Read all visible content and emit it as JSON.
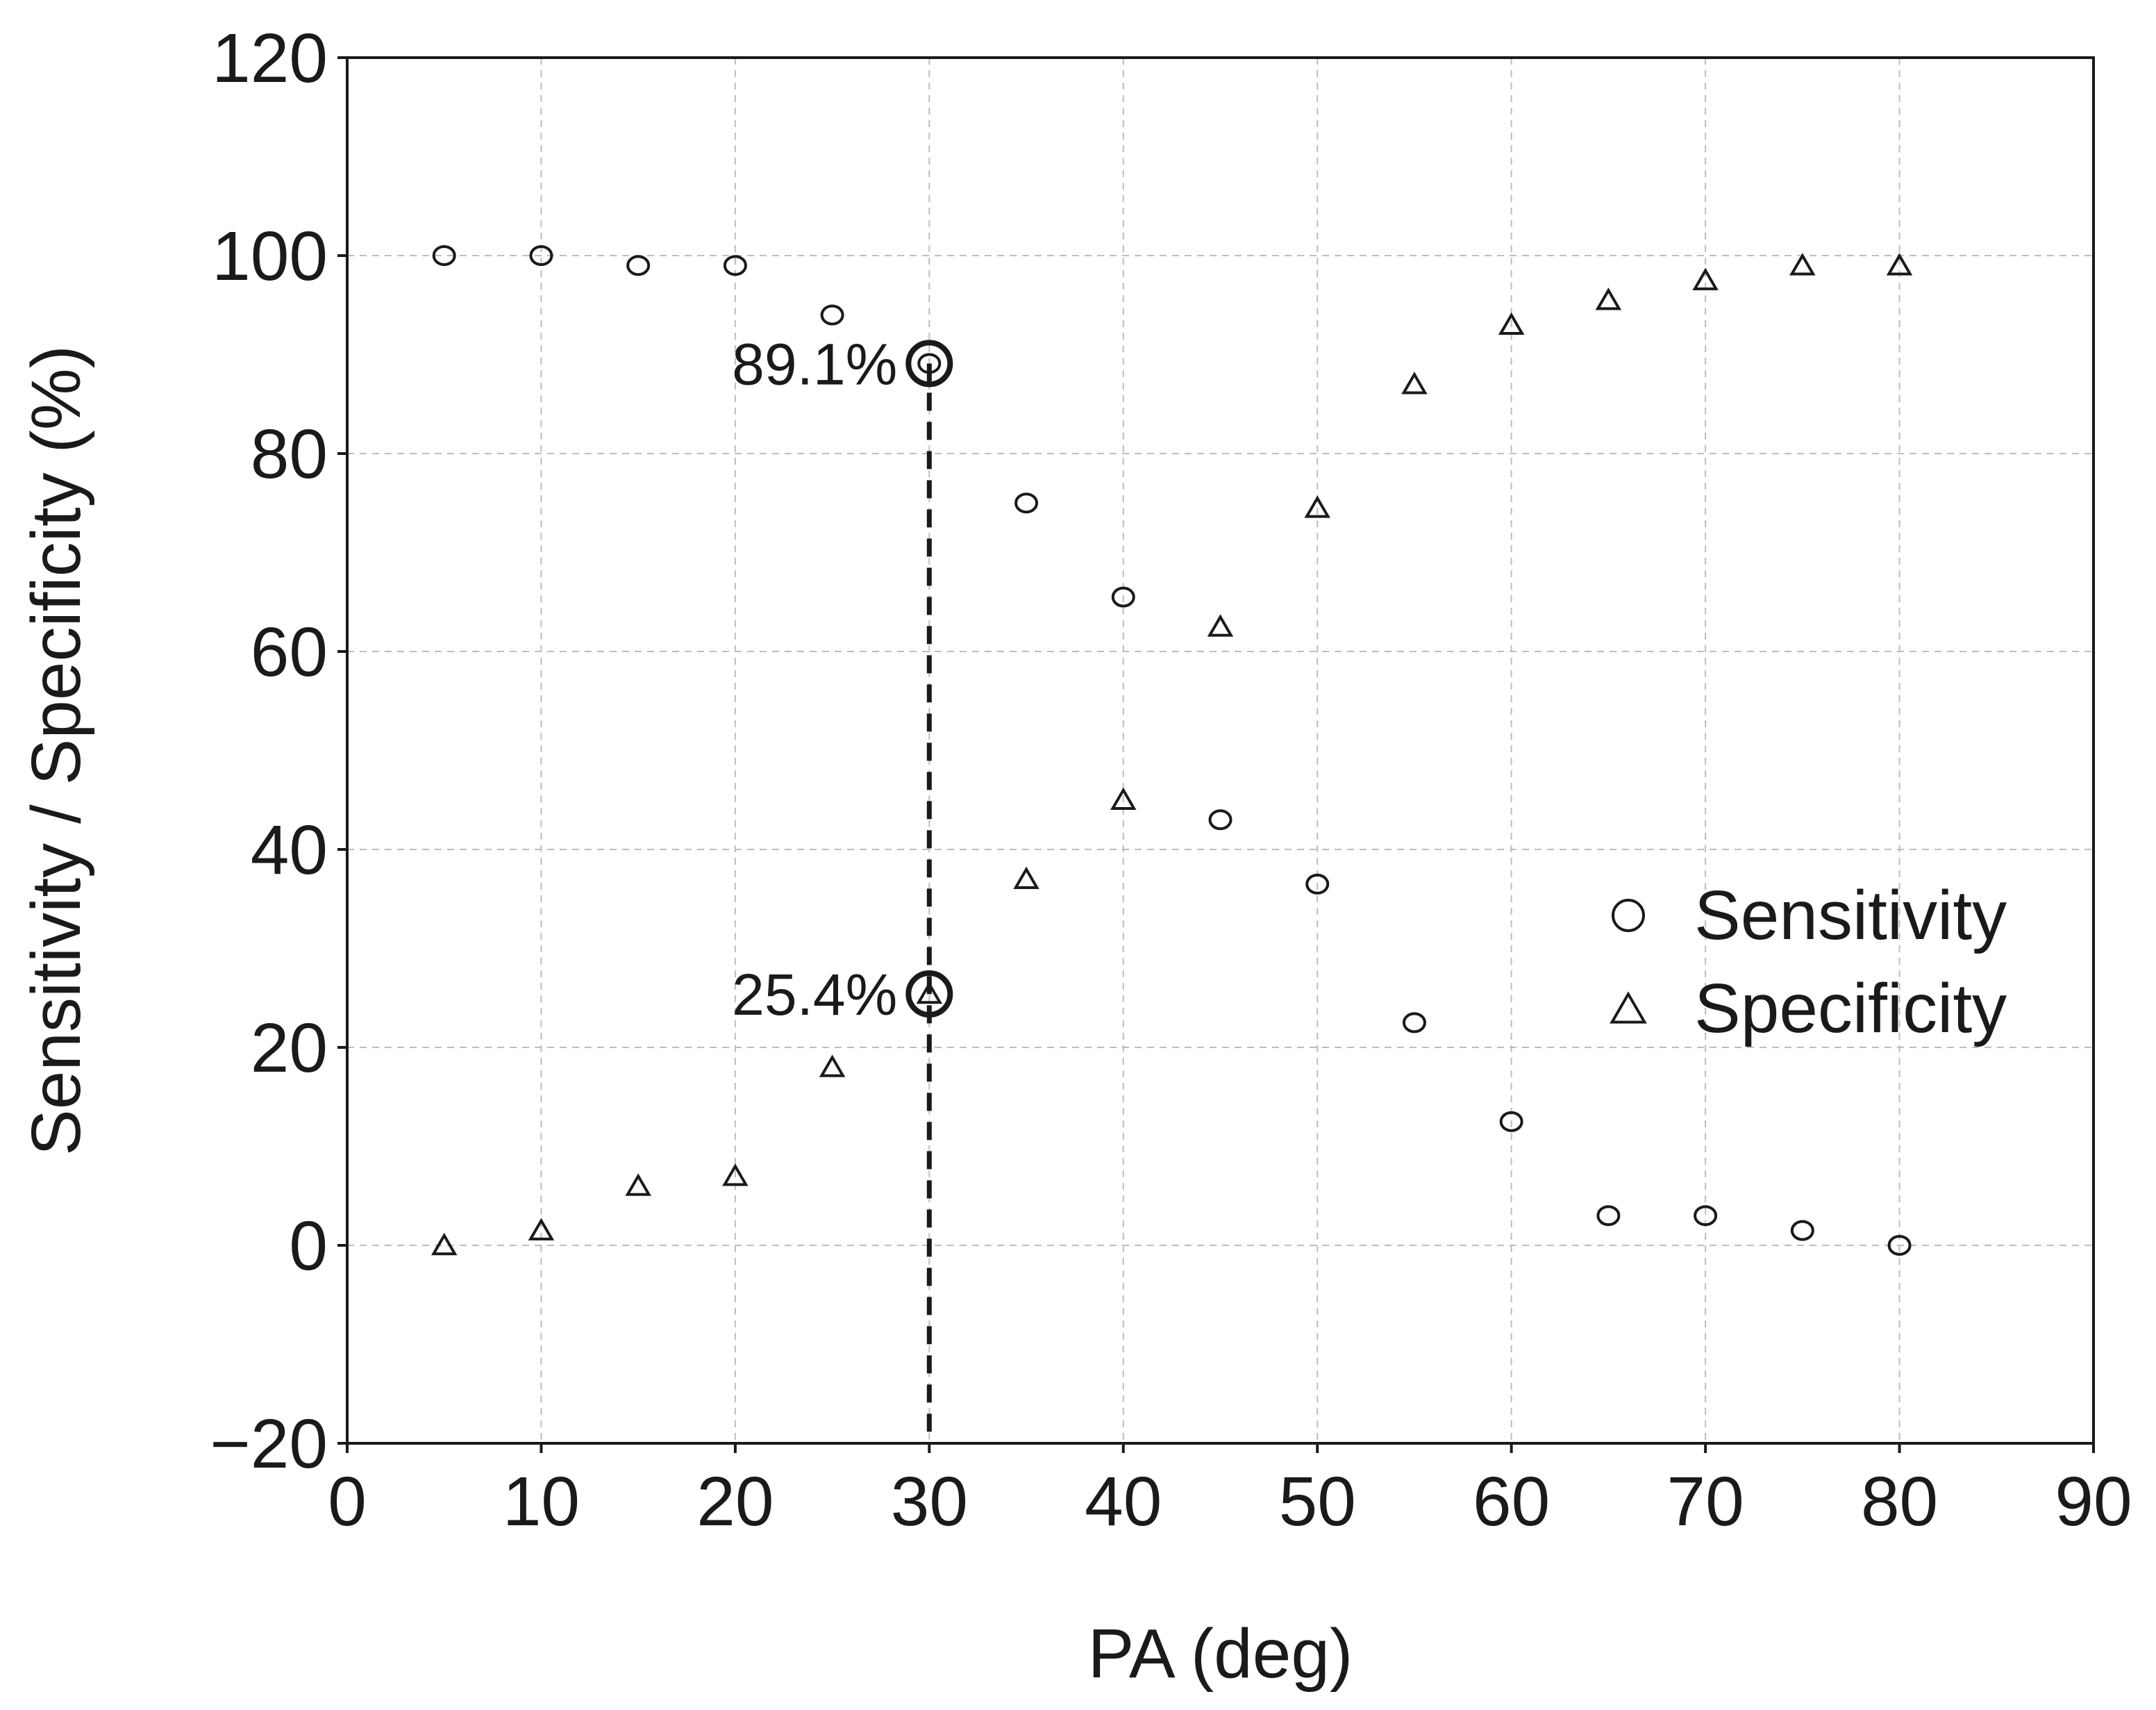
{
  "colors": {
    "background": "#ffffff",
    "ink": "#1a1a1a",
    "grid": "#bdbdbd"
  },
  "chart_data": {
    "type": "scatter",
    "title": "",
    "xlabel": "PA (deg)",
    "ylabel": "Sensitivity / Specificity (%)",
    "xlim": [
      0,
      90
    ],
    "ylim": [
      -20,
      120
    ],
    "xticks": [
      0,
      10,
      20,
      30,
      40,
      50,
      60,
      70,
      80,
      90
    ],
    "yticks": [
      -20,
      0,
      20,
      40,
      60,
      80,
      100,
      120
    ],
    "xtick_labels": [
      "0",
      "10",
      "20",
      "30",
      "40",
      "50",
      "60",
      "70",
      "80",
      "90"
    ],
    "ytick_labels": [
      "−20",
      "0",
      "20",
      "40",
      "60",
      "80",
      "100",
      "120"
    ],
    "grid": true,
    "legend": "middle-right",
    "series": [
      {
        "name": "Sensitivity",
        "marker": "circle",
        "x": [
          5,
          10,
          15,
          20,
          25,
          30,
          35,
          40,
          45,
          50,
          55,
          60,
          65,
          70,
          75,
          80
        ],
        "y": [
          100,
          100,
          99,
          99,
          94,
          89.1,
          75,
          65.5,
          43,
          36.5,
          22.5,
          12.5,
          3,
          3,
          1.5,
          0
        ]
      },
      {
        "name": "Specificity",
        "marker": "triangle",
        "x": [
          5,
          10,
          15,
          20,
          25,
          30,
          35,
          40,
          45,
          50,
          55,
          60,
          65,
          70,
          75,
          80
        ],
        "y": [
          0,
          1.5,
          6,
          7,
          18,
          25.4,
          37,
          45,
          62.5,
          74.5,
          87,
          93,
          95.5,
          97.5,
          99,
          99
        ]
      }
    ],
    "cutoff": {
      "x": 30,
      "style": "dashed-vertical",
      "highlights": [
        {
          "x": 30,
          "y": 89.1,
          "label": "89.1%"
        },
        {
          "x": 30,
          "y": 25.4,
          "label": "25.4%"
        }
      ]
    }
  }
}
